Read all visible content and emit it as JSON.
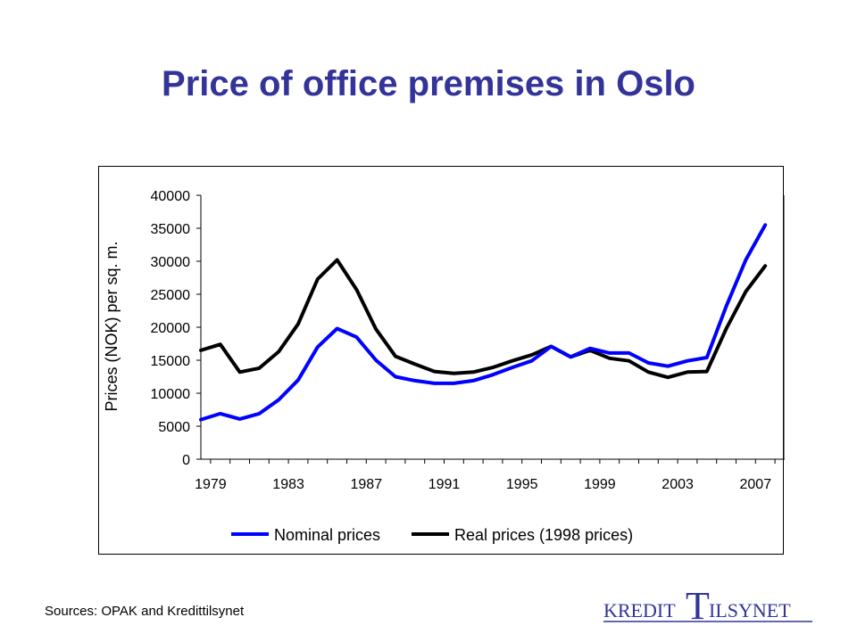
{
  "title": "Price of office premises in Oslo",
  "source": "Sources: OPAK and Kredittilsynet",
  "logo": {
    "text_left": "KREDIT",
    "text_big": "T",
    "text_right": "ILSYNET",
    "color": "#333399"
  },
  "colors": {
    "title": "#333399",
    "nominal": "#0000ff",
    "real": "#000000"
  },
  "chart_data": {
    "type": "line",
    "title": "",
    "xlabel": "",
    "ylabel": "Prices (NOK) per sq. m.",
    "xlim": [
      1978.5,
      2008.5
    ],
    "ylim": [
      0,
      40000
    ],
    "yticks": [
      0,
      5000,
      10000,
      15000,
      20000,
      25000,
      30000,
      35000,
      40000
    ],
    "xticks": [
      1979,
      1983,
      1987,
      1991,
      1995,
      1999,
      2003,
      2007
    ],
    "grid": false,
    "legend_position": "bottom",
    "x": [
      1978.5,
      1979.5,
      1980.5,
      1981.5,
      1982.5,
      1983.5,
      1984.5,
      1985.5,
      1986.5,
      1987.5,
      1988.5,
      1989.5,
      1990.5,
      1991.5,
      1992.5,
      1993.5,
      1994.5,
      1995.5,
      1996.5,
      1997.5,
      1998.5,
      1999.5,
      2000.5,
      2001.5,
      2002.5,
      2003.5,
      2004.5,
      2005.5,
      2006.5,
      2007.5
    ],
    "series": [
      {
        "name": "Nominal prices",
        "color": "#0000ff",
        "values": [
          6000,
          6900,
          6100,
          6900,
          9000,
          12000,
          17000,
          19800,
          18500,
          15000,
          12500,
          11900,
          11500,
          11500,
          11900,
          12800,
          13900,
          14900,
          17100,
          15500,
          16800,
          16100,
          16100,
          14600,
          14100,
          14900,
          15400,
          23200,
          30200,
          35500
        ]
      },
      {
        "name": "Real prices (1998 prices)",
        "color": "#000000",
        "values": [
          16500,
          17400,
          13200,
          13800,
          16300,
          20500,
          27300,
          30200,
          25700,
          19700,
          15600,
          14400,
          13300,
          13000,
          13200,
          13900,
          14900,
          15800,
          17100,
          15500,
          16500,
          15300,
          14900,
          13200,
          12400,
          13200,
          13300,
          19800,
          25400,
          29300
        ]
      }
    ]
  }
}
